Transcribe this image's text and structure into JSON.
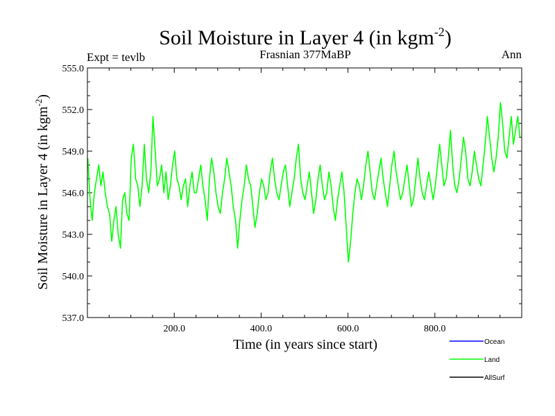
{
  "chart_data": {
    "type": "line",
    "title": "Soil Moisture in Layer 4 (in kgm",
    "title_sup": "-2",
    "title_close": ")",
    "subtitle_left": "Expt = tevlb",
    "subtitle_center": "Frasnian 377MaBP",
    "subtitle_right": "Ann",
    "xlabel": "Time (in years since start)",
    "ylabel": "Soil Moisture in Layer 4 (in kgm",
    "ylabel_sup": "-2",
    "ylabel_close": ")",
    "xlim": [
      0,
      1000
    ],
    "ylim": [
      537,
      555
    ],
    "xticks": [
      200,
      400,
      600,
      800
    ],
    "xtick_labels": [
      "200.0",
      "400.0",
      "600.0",
      "800.0"
    ],
    "yticks": [
      537,
      540,
      543,
      546,
      549,
      552,
      555
    ],
    "ytick_labels": [
      "537.0",
      "540.0",
      "543.0",
      "546.0",
      "549.0",
      "552.0",
      "555.0"
    ],
    "series": [
      {
        "name": "Ocean",
        "color": "#0000ff",
        "values": []
      },
      {
        "name": "Land",
        "color": "#00ff00",
        "x_start": 1,
        "x_step": 5,
        "values": [
          548.5,
          545.5,
          544.0,
          546.0,
          547.0,
          548.0,
          546.5,
          547.5,
          546.0,
          545.0,
          544.5,
          542.5,
          544.0,
          545.0,
          543.0,
          542.0,
          545.5,
          546.0,
          544.5,
          544.0,
          548.5,
          549.5,
          547.0,
          546.5,
          545.0,
          546.5,
          549.5,
          547.0,
          546.0,
          547.5,
          551.5,
          549.0,
          546.5,
          547.0,
          548.0,
          546.0,
          547.5,
          545.5,
          546.5,
          548.0,
          549.0,
          547.0,
          546.5,
          545.5,
          546.5,
          547.0,
          545.0,
          546.5,
          547.5,
          546.0,
          546.0,
          547.0,
          548.0,
          546.5,
          545.5,
          544.0,
          547.0,
          548.5,
          547.5,
          546.0,
          545.0,
          544.5,
          546.0,
          547.0,
          548.5,
          547.5,
          546.5,
          545.0,
          544.0,
          542.0,
          544.0,
          545.5,
          546.5,
          548.0,
          547.0,
          546.5,
          545.0,
          543.5,
          544.5,
          546.0,
          547.0,
          546.5,
          545.5,
          546.0,
          547.5,
          548.5,
          547.0,
          546.0,
          545.5,
          546.5,
          547.5,
          548.0,
          546.5,
          545.0,
          546.0,
          547.0,
          548.5,
          549.5,
          547.0,
          546.0,
          545.5,
          546.5,
          547.5,
          546.0,
          544.5,
          545.5,
          547.0,
          548.0,
          546.5,
          545.5,
          546.0,
          547.5,
          546.5,
          545.0,
          544.0,
          545.5,
          546.5,
          547.5,
          546.0,
          543.5,
          541.0,
          542.5,
          544.5,
          546.0,
          547.0,
          546.5,
          545.5,
          546.5,
          548.0,
          549.0,
          547.5,
          546.0,
          545.5,
          546.5,
          547.5,
          548.5,
          547.0,
          546.0,
          545.0,
          546.5,
          548.0,
          549.0,
          547.5,
          546.5,
          545.5,
          546.0,
          547.0,
          548.0,
          546.5,
          545.0,
          545.5,
          547.0,
          548.5,
          547.0,
          546.0,
          545.5,
          546.5,
          547.5,
          546.5,
          545.5,
          546.5,
          548.0,
          549.5,
          548.0,
          546.5,
          547.0,
          548.5,
          550.5,
          548.0,
          546.5,
          546.0,
          547.0,
          548.5,
          550.0,
          549.0,
          547.0,
          546.5,
          547.5,
          549.0,
          548.0,
          547.0,
          546.5,
          548.0,
          549.5,
          551.5,
          550.0,
          548.5,
          547.5,
          548.5,
          550.0,
          552.5,
          551.0,
          549.0,
          548.5,
          550.0,
          551.5,
          549.5,
          550.5,
          551.5,
          550.0
        ]
      },
      {
        "name": "AllSurf",
        "color": "#000000",
        "values": []
      }
    ]
  }
}
